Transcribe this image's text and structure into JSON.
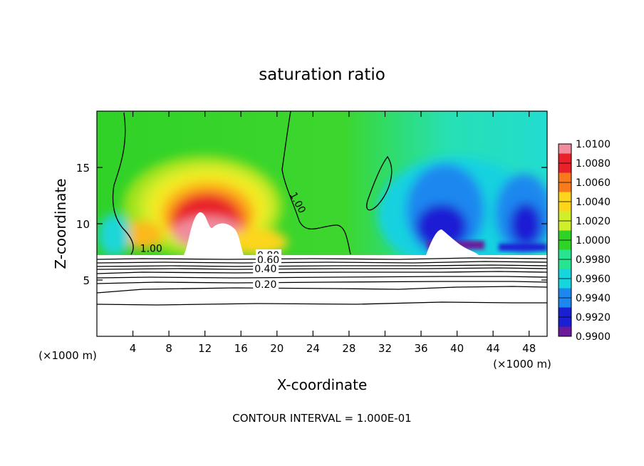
{
  "chart_data": {
    "type": "heatmap",
    "title": "saturation ratio",
    "xlabel": "X-coordinate",
    "ylabel": "Z-coordinate",
    "x_unit": "(×1000 m)",
    "y_unit": "(×1000 m)",
    "xlim": [
      0,
      50
    ],
    "ylim": [
      0,
      20
    ],
    "x_ticks": [
      4,
      8,
      12,
      16,
      20,
      24,
      28,
      32,
      36,
      40,
      44,
      48
    ],
    "y_ticks": [
      5,
      10,
      15
    ],
    "footnote": "CONTOUR INTERVAL = 1.000E-01",
    "colorbar": {
      "levels": [
        "1.0100",
        "1.0080",
        "1.0060",
        "1.0040",
        "1.0020",
        "1.0000",
        "0.9980",
        "0.9960",
        "0.9940",
        "0.9920",
        "0.9900"
      ],
      "colors": [
        "#f08c9c",
        "#e8212a",
        "#f97a1a",
        "#fdd51a",
        "#d0ee2a",
        "#2fd226",
        "#27e490",
        "#15d6dc",
        "#1c88ef",
        "#1b1fd4",
        "#6a1a9a"
      ]
    },
    "contour_labels": [
      {
        "text": "1.00",
        "x": 4.8,
        "z": 7.5
      },
      {
        "text": "1.00",
        "x": 21.4,
        "z": 12.6
      },
      {
        "text": "0.80",
        "x": 17.8,
        "z": 6.9
      },
      {
        "text": "0.60",
        "x": 17.8,
        "z": 6.5
      },
      {
        "text": "0.40",
        "x": 17.5,
        "z": 5.7
      },
      {
        "text": "0.20",
        "x": 17.5,
        "z": 4.3
      }
    ]
  }
}
